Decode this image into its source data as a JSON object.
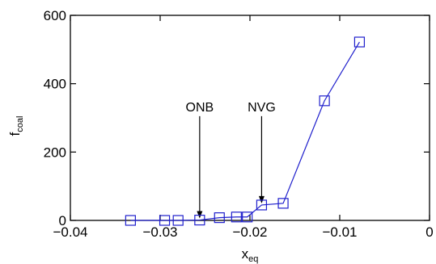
{
  "chart_data": {
    "type": "line",
    "title": "",
    "xlabel": "x",
    "xlabel_sub": "eq",
    "ylabel": "f",
    "ylabel_sub": "coal",
    "xlim": [
      -0.04,
      0
    ],
    "ylim": [
      0,
      600
    ],
    "xticks": [
      -0.04,
      -0.03,
      -0.02,
      -0.01,
      0
    ],
    "xtick_labels": [
      "−0.04",
      "−0.03",
      "−0.02",
      "−0.01",
      "0"
    ],
    "yticks": [
      0,
      200,
      400,
      600
    ],
    "ytick_labels": [
      "0",
      "200",
      "400",
      "600"
    ],
    "grid": false,
    "series": [
      {
        "color": "#1f1fcc",
        "marker": "square-open",
        "x": [
          -0.0333,
          -0.0295,
          -0.028,
          -0.0256,
          -0.0234,
          -0.0215,
          -0.0203,
          -0.0187,
          -0.0163,
          -0.0117,
          -0.0078
        ],
        "y": [
          0,
          0,
          0,
          1,
          8,
          10,
          10,
          45,
          50,
          350,
          522
        ]
      }
    ],
    "annotations": [
      {
        "text": "ONB",
        "x": -0.0256,
        "y_from": 305,
        "y_to": 6
      },
      {
        "text": "NVG",
        "x": -0.0187,
        "y_from": 305,
        "y_to": 50
      }
    ]
  }
}
